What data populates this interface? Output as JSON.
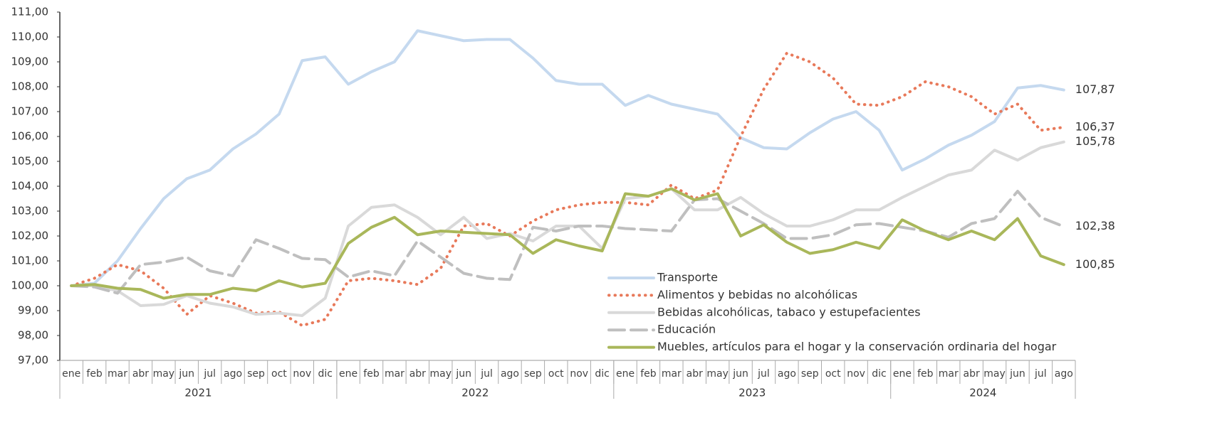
{
  "chart_data": {
    "type": "line",
    "categories": [
      "ene",
      "feb",
      "mar",
      "abr",
      "may",
      "jun",
      "jul",
      "ago",
      "sep",
      "oct",
      "nov",
      "dic",
      "ene",
      "feb",
      "mar",
      "abr",
      "may",
      "jun",
      "jul",
      "ago",
      "sep",
      "oct",
      "nov",
      "dic",
      "ene",
      "feb",
      "mar",
      "abr",
      "may",
      "jun",
      "jul",
      "ago",
      "sep",
      "oct",
      "nov",
      "dic",
      "ene",
      "feb",
      "mar",
      "abr",
      "may",
      "jun",
      "jul",
      "ago"
    ],
    "years": [
      "2021",
      "2022",
      "2023",
      "2024"
    ],
    "ylim": [
      97,
      111
    ],
    "yticks": [
      {
        "value": 97,
        "label": "97,00"
      },
      {
        "value": 98,
        "label": "98,00"
      },
      {
        "value": 99,
        "label": "99,00"
      },
      {
        "value": 100,
        "label": "100,00"
      },
      {
        "value": 101,
        "label": "101,00"
      },
      {
        "value": 102,
        "label": "102,00"
      },
      {
        "value": 103,
        "label": "103,00"
      },
      {
        "value": 104,
        "label": "104,00"
      },
      {
        "value": 105,
        "label": "105,00"
      },
      {
        "value": 106,
        "label": "106,00"
      },
      {
        "value": 107,
        "label": "107,00"
      },
      {
        "value": 108,
        "label": "108,00"
      },
      {
        "value": 109,
        "label": "109,00"
      },
      {
        "value": 110,
        "label": "110,00"
      },
      {
        "value": 111,
        "label": "111,00"
      }
    ],
    "grid": false,
    "series": [
      {
        "name": "Transporte",
        "color": "#c5d9ef",
        "dash": "solid",
        "label_color": "#6f8fb3",
        "values": [
          100.0,
          100.1,
          101.0,
          102.3,
          103.5,
          104.3,
          104.65,
          105.5,
          106.1,
          106.9,
          109.05,
          109.2,
          108.1,
          108.6,
          109.0,
          110.25,
          110.05,
          109.85,
          109.9,
          109.9,
          109.15,
          108.25,
          108.1,
          108.1,
          107.25,
          107.65,
          107.3,
          107.1,
          106.9,
          105.95,
          105.55,
          105.5,
          106.15,
          106.7,
          107.0,
          106.25,
          104.65,
          105.1,
          105.65,
          106.05,
          106.6,
          107.95,
          108.05,
          107.87
        ],
        "value_labels": [
          null,
          null,
          null,
          null,
          null,
          null,
          null,
          null,
          null,
          null,
          null,
          null,
          null,
          null,
          null,
          null,
          null,
          null,
          null,
          null,
          null,
          null,
          null,
          null,
          null,
          null,
          null,
          null,
          null,
          null,
          null,
          null,
          null,
          null,
          null,
          null,
          null,
          null,
          null,
          null,
          null,
          null,
          null,
          "107,87"
        ]
      },
      {
        "name": "Alimentos y bebidas no alcohólicas",
        "color": "#e8795a",
        "dash": "dotted",
        "label_color": "#9a9a9a",
        "values": [
          100.0,
          100.3,
          100.85,
          100.6,
          99.9,
          98.85,
          99.6,
          99.3,
          98.9,
          98.95,
          98.4,
          98.65,
          100.2,
          100.3,
          100.2,
          100.05,
          100.7,
          102.4,
          102.5,
          102.0,
          102.6,
          103.05,
          103.25,
          103.35,
          103.35,
          103.25,
          104.05,
          103.5,
          103.85,
          106.0,
          107.9,
          109.35,
          109.0,
          108.35,
          107.3,
          107.25,
          107.6,
          108.2,
          108.0,
          107.6,
          106.9,
          107.3,
          106.25,
          106.37
        ],
        "value_labels": [
          null,
          null,
          null,
          null,
          null,
          null,
          null,
          null,
          null,
          null,
          null,
          null,
          null,
          null,
          null,
          null,
          null,
          null,
          null,
          null,
          null,
          null,
          null,
          null,
          null,
          null,
          null,
          null,
          null,
          null,
          null,
          null,
          null,
          null,
          null,
          null,
          null,
          null,
          null,
          null,
          null,
          null,
          null,
          "106,37"
        ]
      },
      {
        "name": "Bebidas alcohólicas, tabaco y estupefacientes",
        "color": "#d9d9d9",
        "dash": "solid",
        "label_color": "#333333",
        "values": [
          100.0,
          100.0,
          99.8,
          99.2,
          99.25,
          99.6,
          99.3,
          99.15,
          98.85,
          98.9,
          98.8,
          99.5,
          102.4,
          103.15,
          103.25,
          102.75,
          102.05,
          102.75,
          101.9,
          102.1,
          101.8,
          102.4,
          102.4,
          101.5,
          103.5,
          103.6,
          103.9,
          103.05,
          103.05,
          103.55,
          102.9,
          102.4,
          102.4,
          102.65,
          103.05,
          103.05,
          103.55,
          104.0,
          104.45,
          104.65,
          105.45,
          105.05,
          105.55,
          105.78
        ],
        "value_labels": [
          null,
          null,
          null,
          null,
          null,
          null,
          null,
          null,
          null,
          null,
          null,
          null,
          null,
          null,
          null,
          null,
          null,
          null,
          null,
          null,
          null,
          null,
          null,
          null,
          null,
          null,
          null,
          null,
          null,
          null,
          null,
          null,
          null,
          null,
          null,
          null,
          null,
          null,
          null,
          null,
          null,
          null,
          null,
          "105,78"
        ]
      },
      {
        "name": "Educación",
        "color": "#bfbfbf",
        "dash": "dashed",
        "label_color": "#8fb3d6",
        "values": [
          100.0,
          99.95,
          99.7,
          100.85,
          100.95,
          101.15,
          100.6,
          100.4,
          101.85,
          101.5,
          101.1,
          101.05,
          100.35,
          100.6,
          100.4,
          101.8,
          101.15,
          100.5,
          100.3,
          100.25,
          102.35,
          102.2,
          102.4,
          102.4,
          102.3,
          102.25,
          102.2,
          103.45,
          103.5,
          103.0,
          102.5,
          101.9,
          101.9,
          102.05,
          102.45,
          102.5,
          102.35,
          102.2,
          101.95,
          102.5,
          102.7,
          103.8,
          102.75,
          102.38
        ],
        "value_labels": [
          null,
          null,
          null,
          null,
          null,
          null,
          null,
          null,
          null,
          null,
          null,
          null,
          null,
          null,
          null,
          null,
          null,
          null,
          null,
          null,
          null,
          null,
          null,
          null,
          null,
          null,
          null,
          null,
          null,
          null,
          null,
          null,
          null,
          null,
          null,
          null,
          null,
          null,
          null,
          null,
          null,
          null,
          null,
          "102,38"
        ]
      },
      {
        "name": "Muebles, artículos para el hogar y la conservación ordinaria del hogar",
        "color": "#a9b75a",
        "dash": "solid",
        "label_color": "#5a7a95",
        "values": [
          100.0,
          100.05,
          99.9,
          99.85,
          99.5,
          99.65,
          99.65,
          99.9,
          99.8,
          100.2,
          99.95,
          100.1,
          101.7,
          102.35,
          102.75,
          102.05,
          102.2,
          102.15,
          102.1,
          102.05,
          101.3,
          101.85,
          101.6,
          101.4,
          103.7,
          103.6,
          103.9,
          103.45,
          103.7,
          102.0,
          102.45,
          101.75,
          101.3,
          101.45,
          101.75,
          101.5,
          102.65,
          102.2,
          101.85,
          102.2,
          101.85,
          102.7,
          101.2,
          100.85
        ],
        "value_labels": [
          null,
          null,
          null,
          null,
          null,
          null,
          null,
          null,
          null,
          null,
          null,
          null,
          null,
          null,
          null,
          null,
          null,
          null,
          null,
          null,
          null,
          null,
          null,
          null,
          null,
          null,
          null,
          null,
          null,
          null,
          null,
          null,
          null,
          null,
          null,
          null,
          null,
          null,
          null,
          null,
          null,
          null,
          null,
          "100,85"
        ]
      }
    ]
  }
}
